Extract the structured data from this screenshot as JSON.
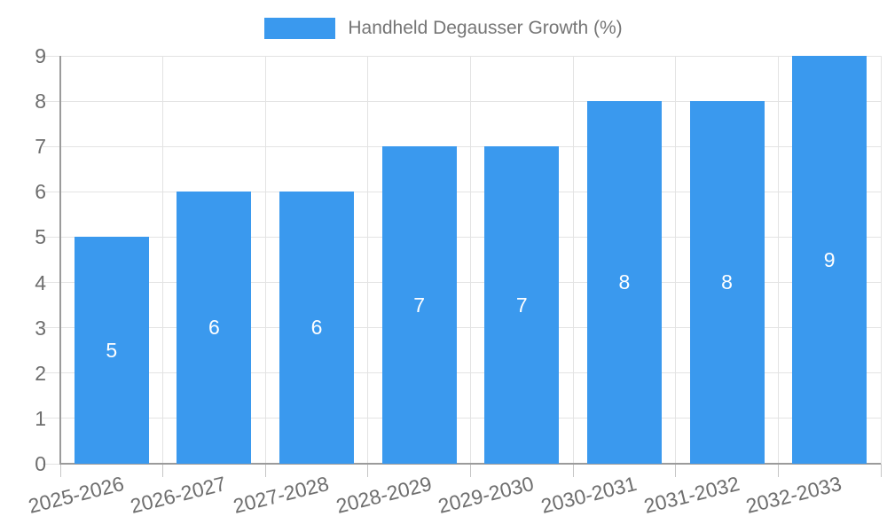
{
  "chart_data": {
    "type": "bar",
    "title": "Handheld Degausser Growth (%)",
    "categories": [
      "2025-2026",
      "2026-2027",
      "2027-2028",
      "2028-2029",
      "2029-2030",
      "2030-2031",
      "2031-2032",
      "2032-2033"
    ],
    "values": [
      5,
      6,
      6,
      7,
      7,
      8,
      8,
      9
    ],
    "xlabel": "",
    "ylabel": "",
    "ylim": [
      0,
      9
    ],
    "y_ticks": [
      0,
      1,
      2,
      3,
      4,
      5,
      6,
      7,
      8,
      9
    ],
    "grid": true,
    "legend_position": "top",
    "value_labels": "inside-center"
  },
  "colors": {
    "bar": "#3a99ee",
    "grid": "#e3e3e3",
    "axis": "#9b9b9b",
    "tick": "#c6c6c6",
    "axis_label": "#6e6e6e",
    "value_label": "#ffffff",
    "legend_text": "#757575",
    "background": "#ffffff"
  }
}
